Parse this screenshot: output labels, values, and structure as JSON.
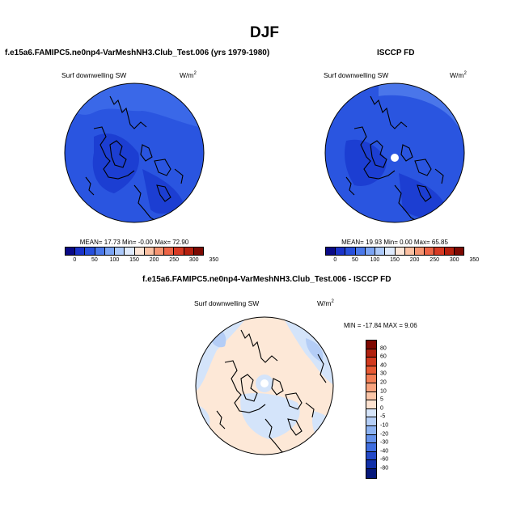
{
  "season": "DJF",
  "panels": [
    {
      "title": "f.e15a6.FAMIPC5.ne0np4-VarMeshNH3.Club_Test.006 (yrs 1979-1980)",
      "variable": "Surf downwelling SW",
      "units": "W/m",
      "units_exp": "2",
      "stats": "MEAN=  17.73  Min=  -0.00  Max=  72.90"
    },
    {
      "title": "ISCCP FD",
      "variable": "Surf downwelling SW",
      "units": "W/m",
      "units_exp": "2",
      "stats": "MEAN=  19.93  Min=   0.00  Max=  65.85"
    },
    {
      "title": "f.e15a6.FAMIPC5.ne0np4-VarMeshNH3.Club_Test.006 - ISCCP FD",
      "variable": "Surf downwelling SW",
      "units": "W/m",
      "units_exp": "2",
      "stats": "MIN = -17.84 MAX =   9.06"
    }
  ],
  "colorbar_main": {
    "ticks": [
      "0",
      "50",
      "100",
      "150",
      "200",
      "250",
      "300",
      "350"
    ],
    "colors": [
      "#0a0a86",
      "#1b33c8",
      "#2850dc",
      "#4a78ea",
      "#7ba4f4",
      "#acc9fa",
      "#dfeafc",
      "#fde6d8",
      "#fbc0a2",
      "#f59572",
      "#ec6446",
      "#d73a24",
      "#b5200e",
      "#7d0a03"
    ]
  },
  "colorbar_diff": {
    "ticks": [
      "80",
      "60",
      "40",
      "30",
      "20",
      "10",
      "5",
      "0",
      "-5",
      "-10",
      "-20",
      "-30",
      "-40",
      "-60",
      "-80"
    ],
    "colors": [
      "#7f0902",
      "#b0210f",
      "#d23a1f",
      "#e85a34",
      "#f37e55",
      "#f8a37e",
      "#fbc6a8",
      "#fde3d1",
      "#d6e5fa",
      "#b5cff7",
      "#8db3f2",
      "#6592eb",
      "#3f6edf",
      "#2449c8",
      "#1130a8",
      "#06187a"
    ]
  },
  "map_colors": {
    "deep": "#1c3ed2",
    "field": "#2a55e0",
    "mid": "#3a68e8",
    "light": "#5b86f0",
    "coast": "#000000",
    "diff_neutral": "#fde8d7",
    "diff_light": "#d4e4fa",
    "diff_mid": "#b4cdf6"
  }
}
